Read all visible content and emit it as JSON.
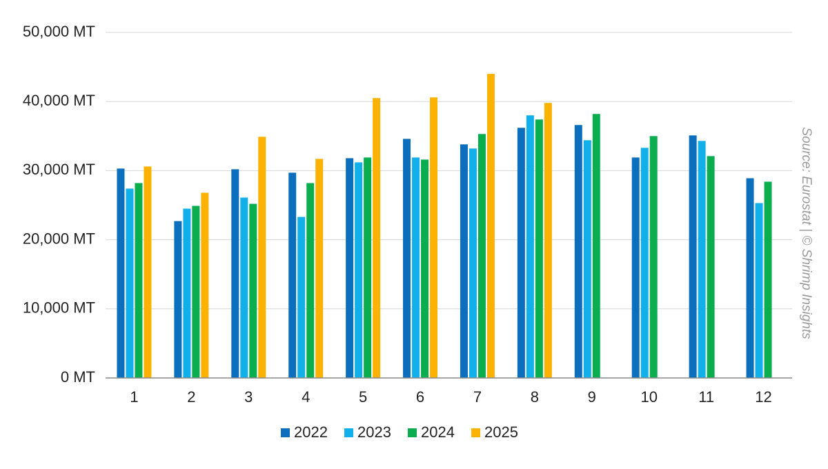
{
  "chart_data": {
    "type": "bar",
    "title": "",
    "xlabel": "",
    "ylabel": "",
    "categories": [
      "1",
      "2",
      "3",
      "4",
      "5",
      "6",
      "7",
      "8",
      "9",
      "10",
      "11",
      "12"
    ],
    "series": [
      {
        "name": "2022",
        "color": "#0b6fbd",
        "values": [
          30300,
          22700,
          30200,
          29700,
          31800,
          34600,
          33800,
          36200,
          36600,
          31900,
          35100,
          28900
        ]
      },
      {
        "name": "2023",
        "color": "#12b0ea",
        "values": [
          27400,
          24500,
          26100,
          23300,
          31200,
          31900,
          33200,
          38000,
          34400,
          33300,
          34300,
          25300
        ]
      },
      {
        "name": "2024",
        "color": "#0aae4f",
        "values": [
          28200,
          24900,
          25200,
          28200,
          31900,
          31600,
          35300,
          37400,
          38200,
          35000,
          32100,
          28400
        ]
      },
      {
        "name": "2025",
        "color": "#fbb203",
        "values": [
          30600,
          26800,
          34900,
          31700,
          40500,
          40600,
          44000,
          39800,
          null,
          null,
          null,
          null
        ]
      }
    ],
    "ylim": [
      0,
      50000
    ],
    "yticks": [
      0,
      10000,
      20000,
      30000,
      40000,
      50000
    ],
    "ytick_labels": [
      "0 MT",
      "10,000 MT",
      "20,000 MT",
      "30,000 MT",
      "40,000 MT",
      "50,000 MT"
    ],
    "grid": true,
    "legend_position": "bottom",
    "source": "Source: Eurostat | © Shrimp Insights"
  }
}
